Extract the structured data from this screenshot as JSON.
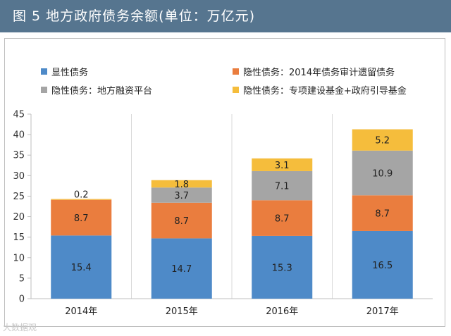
{
  "title": "图 5  地方政府债务余额(单位：万亿元)",
  "watermark": "大数据观",
  "chart_data": {
    "type": "bar",
    "stacked": true,
    "categories": [
      "2014年",
      "2015年",
      "2016年",
      "2017年"
    ],
    "series": [
      {
        "name": "显性债务",
        "color": "#4e8ac8",
        "values": [
          15.4,
          14.7,
          15.3,
          16.5
        ]
      },
      {
        "name": "隐性债务：2014年债务审计遗留债务",
        "color": "#ea7d3e",
        "values": [
          8.7,
          8.7,
          8.7,
          8.7
        ]
      },
      {
        "name": "隐性债务：地方融资平台",
        "color": "#a5a5a5",
        "values": [
          0,
          3.7,
          7.1,
          10.9
        ]
      },
      {
        "name": "隐性债务：专项建设基金+政府引导基金",
        "color": "#f5bd3c",
        "values": [
          0.2,
          1.8,
          3.1,
          5.2
        ]
      }
    ],
    "data_labels": [
      [
        "15.4",
        "14.7",
        "15.3",
        "16.5"
      ],
      [
        "8.7",
        "8.7",
        "8.7",
        "8.7"
      ],
      [
        "",
        "3.7",
        "7.1",
        "10.9"
      ],
      [
        "0.2",
        "1.8",
        "3.1",
        "5.2"
      ]
    ],
    "yticks": [
      0,
      5,
      10,
      15,
      20,
      25,
      30,
      35,
      40,
      45
    ],
    "ylim": [
      0,
      45
    ],
    "grid": "vertical",
    "legend_position": "top"
  }
}
